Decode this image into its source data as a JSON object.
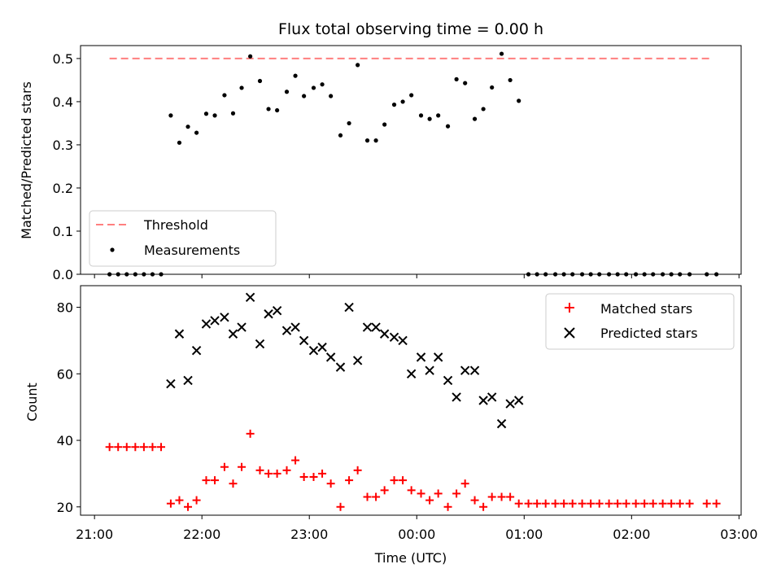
{
  "chart_data": {
    "type": "scatter",
    "title": "Flux total observing time = 0.00 h",
    "xlabel": "Time (UTC)",
    "x_ticks": [
      {
        "hour": 0,
        "label": "21:00"
      },
      {
        "hour": 1,
        "label": "22:00"
      },
      {
        "hour": 2,
        "label": "23:00"
      },
      {
        "hour": 3,
        "label": "00:00"
      },
      {
        "hour": 4,
        "label": "01:00"
      },
      {
        "hour": 5,
        "label": "02:00"
      },
      {
        "hour": 6,
        "label": "03:00"
      }
    ],
    "xlim": [
      -0.13,
      6.02
    ],
    "panels": [
      {
        "name": "ratio",
        "ylabel": "Matched/Predicted stars",
        "ylim": [
          0,
          0.53
        ],
        "yticks": [
          0.0,
          0.1,
          0.2,
          0.3,
          0.4,
          0.5
        ],
        "ytick_labels": [
          "0.0",
          "0.1",
          "0.2",
          "0.3",
          "0.4",
          "0.5"
        ],
        "legend_position": "lower-left",
        "threshold": {
          "name": "Threshold",
          "value": 0.5,
          "x_range": [
            0.14,
            5.75
          ],
          "color": "#ff7f7f"
        },
        "measurements": {
          "name": "Measurements",
          "color": "#000000",
          "x": [
            0.14,
            0.22,
            0.3,
            0.38,
            0.46,
            0.54,
            0.62,
            0.71,
            0.79,
            0.87,
            0.95,
            1.04,
            1.12,
            1.21,
            1.29,
            1.37,
            1.45,
            1.54,
            1.62,
            1.7,
            1.79,
            1.87,
            1.95,
            2.04,
            2.12,
            2.2,
            2.29,
            2.37,
            2.45,
            2.54,
            2.62,
            2.7,
            2.79,
            2.87,
            2.95,
            3.04,
            3.12,
            3.2,
            3.29,
            3.37,
            3.45,
            3.54,
            3.62,
            3.7,
            3.79,
            3.87,
            3.95,
            4.04,
            4.12,
            4.2,
            4.29,
            4.37,
            4.45,
            4.54,
            4.62,
            4.7,
            4.79,
            4.87,
            4.95,
            5.04,
            5.12,
            5.2,
            5.29,
            5.37,
            5.45,
            5.54,
            5.7,
            5.79
          ],
          "y": [
            0,
            0,
            0,
            0,
            0,
            0,
            0,
            0.368,
            0.305,
            0.342,
            0.328,
            0.372,
            0.368,
            0.415,
            0.373,
            0.432,
            0.505,
            0.448,
            0.383,
            0.38,
            0.423,
            0.46,
            0.413,
            0.432,
            0.44,
            0.413,
            0.322,
            0.35,
            0.485,
            0.31,
            0.31,
            0.347,
            0.393,
            0.4,
            0.415,
            0.368,
            0.36,
            0.368,
            0.343,
            0.452,
            0.443,
            0.36,
            0.383,
            0.433,
            0.511,
            0.45,
            0.402,
            0,
            0,
            0,
            0,
            0,
            0,
            0,
            0,
            0,
            0,
            0,
            0,
            0,
            0,
            0,
            0,
            0,
            0,
            0,
            0,
            0
          ]
        }
      },
      {
        "name": "counts",
        "ylabel": "Count",
        "ylim": [
          17.5,
          86.5
        ],
        "yticks": [
          20,
          40,
          60,
          80
        ],
        "ytick_labels": [
          "20",
          "40",
          "60",
          "80"
        ],
        "legend_position": "upper-right",
        "series": [
          {
            "name": "Matched stars",
            "marker": "plus",
            "color": "#ff0000",
            "x": [
              0.14,
              0.22,
              0.3,
              0.38,
              0.46,
              0.54,
              0.62,
              0.71,
              0.79,
              0.87,
              0.95,
              1.04,
              1.12,
              1.21,
              1.29,
              1.37,
              1.45,
              1.54,
              1.62,
              1.7,
              1.79,
              1.87,
              1.95,
              2.04,
              2.12,
              2.2,
              2.29,
              2.37,
              2.45,
              2.54,
              2.62,
              2.7,
              2.79,
              2.87,
              2.95,
              3.04,
              3.12,
              3.2,
              3.29,
              3.37,
              3.45,
              3.54,
              3.62,
              3.7,
              3.79,
              3.87,
              3.95,
              4.04,
              4.12,
              4.2,
              4.29,
              4.37,
              4.45,
              4.54,
              4.62,
              4.7,
              4.79,
              4.87,
              4.95,
              5.04,
              5.12,
              5.2,
              5.29,
              5.37,
              5.45,
              5.54,
              5.7,
              5.79
            ],
            "y": [
              38,
              38,
              38,
              38,
              38,
              38,
              38,
              21,
              22,
              20,
              22,
              28,
              28,
              32,
              27,
              32,
              42,
              31,
              30,
              30,
              31,
              34,
              29,
              29,
              30,
              27,
              20,
              28,
              31,
              23,
              23,
              25,
              28,
              28,
              25,
              24,
              22,
              24,
              20,
              24,
              27,
              22,
              20,
              23,
              23,
              23,
              21,
              21,
              21,
              21,
              21,
              21,
              21,
              21,
              21,
              21,
              21,
              21,
              21,
              21,
              21,
              21,
              21,
              21,
              21,
              21,
              21,
              21
            ]
          },
          {
            "name": "Predicted stars",
            "marker": "x",
            "color": "#000000",
            "x": [
              0.71,
              0.79,
              0.87,
              0.95,
              1.04,
              1.12,
              1.21,
              1.29,
              1.37,
              1.45,
              1.54,
              1.62,
              1.7,
              1.79,
              1.87,
              1.95,
              2.04,
              2.12,
              2.2,
              2.29,
              2.37,
              2.45,
              2.54,
              2.62,
              2.7,
              2.79,
              2.87,
              2.95,
              3.04,
              3.12,
              3.2,
              3.29,
              3.37,
              3.45,
              3.54,
              3.62,
              3.7,
              3.79,
              3.87,
              3.95
            ],
            "y": [
              57,
              72,
              58,
              67,
              75,
              76,
              77,
              72,
              74,
              83,
              69,
              78,
              79,
              73,
              74,
              70,
              67,
              68,
              65,
              62,
              80,
              64,
              74,
              74,
              72,
              71,
              70,
              60,
              65,
              61,
              65,
              58,
              53,
              61,
              61,
              52,
              53,
              45,
              51,
              52
            ]
          }
        ]
      }
    ]
  }
}
